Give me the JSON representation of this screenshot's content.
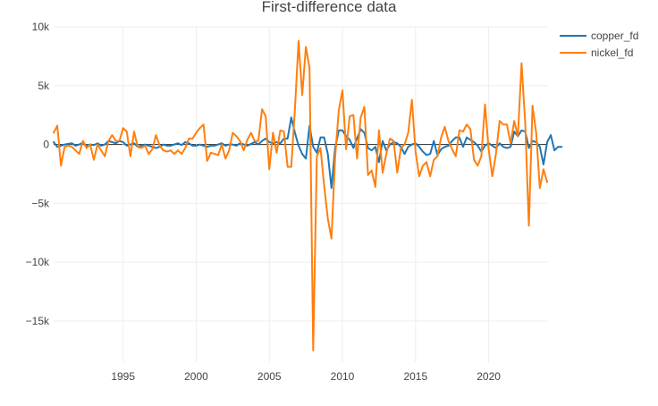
{
  "chart_data": {
    "type": "line",
    "title": "First-difference data",
    "xlabel": "",
    "ylabel": "",
    "xlim": [
      1990.25,
      2024.0
    ],
    "ylim": [
      -18500,
      10000
    ],
    "x_ticks": [
      1995,
      2000,
      2005,
      2010,
      2015,
      2020
    ],
    "y_ticks": [
      -15000,
      -10000,
      -5000,
      0,
      5000,
      10000
    ],
    "y_tick_labels": [
      "−15k",
      "−10k",
      "−5k",
      "0",
      "5k",
      "10k"
    ],
    "x_start": 1990.25,
    "x_step": 0.25,
    "series": [
      {
        "name": "copper_fd",
        "color": "#1f77b4",
        "values": [
          200,
          -200,
          -100,
          0,
          50,
          100,
          -100,
          0,
          150,
          -100,
          0,
          -50,
          100,
          -100,
          0,
          300,
          200,
          100,
          300,
          200,
          -100,
          0,
          100,
          -200,
          -100,
          0,
          -100,
          -200,
          -300,
          -200,
          0,
          -100,
          -100,
          0,
          100,
          -50,
          200,
          100,
          -100,
          -100,
          0,
          -100,
          -200,
          -100,
          -100,
          0,
          100,
          -100,
          0,
          0,
          -100,
          100,
          0,
          -100,
          50,
          200,
          0,
          300,
          500,
          200,
          100,
          200,
          100,
          500,
          500,
          2300,
          1000,
          -100,
          -800,
          -1200,
          1600,
          -200,
          -700,
          600,
          600,
          -800,
          -3700,
          -300,
          1200,
          1200,
          700,
          400,
          -300,
          500,
          1300,
          1000,
          -300,
          -500,
          -200,
          -1500,
          300,
          -500,
          0,
          200,
          100,
          -200,
          -800,
          -200,
          0,
          100,
          -200,
          -600,
          -900,
          -800,
          300,
          -900,
          -400,
          -200,
          -100,
          300,
          600,
          600,
          -200,
          600,
          400,
          200,
          -100,
          -600,
          -100,
          100,
          -100,
          -300,
          100,
          -200,
          -300,
          -200,
          1100,
          700,
          1200,
          1100,
          -300,
          300,
          200,
          -200,
          -1700,
          200,
          800,
          -500,
          -200,
          -200
        ],
        "label_color": "#444444"
      },
      {
        "name": "nickel_fd",
        "color": "#ff7f0e",
        "values": [
          1000,
          1600,
          -1800,
          -200,
          -100,
          -200,
          -500,
          -800,
          300,
          -300,
          0,
          -1300,
          0,
          -500,
          -1000,
          300,
          800,
          300,
          300,
          1400,
          1100,
          -1000,
          1100,
          -200,
          -300,
          -100,
          -800,
          -400,
          800,
          -100,
          -500,
          -600,
          -500,
          -800,
          -500,
          -800,
          -300,
          500,
          500,
          1000,
          1400,
          1700,
          -1400,
          -700,
          -800,
          -900,
          0,
          -1200,
          -500,
          1000,
          700,
          300,
          -500,
          400,
          1000,
          300,
          300,
          3000,
          2400,
          -2100,
          1000,
          -700,
          1200,
          1100,
          -1900,
          -1900,
          3000,
          8800,
          4200,
          8300,
          6500,
          -17500,
          -1000,
          -300,
          -3500,
          -6300,
          -8000,
          -1100,
          2900,
          4600,
          -400,
          2400,
          2500,
          -1200,
          2300,
          3200,
          -2600,
          -2200,
          -3600,
          1200,
          -2400,
          -800,
          500,
          300,
          -2400,
          -300,
          0,
          1000,
          3800,
          -600,
          -2700,
          -1800,
          -1500,
          -2700,
          -1300,
          -1000,
          600,
          1500,
          300,
          -400,
          -1000,
          1200,
          1100,
          1700,
          1300,
          -1300,
          -1800,
          -1000,
          3400,
          -400,
          -2700,
          -800,
          2000,
          1700,
          1700,
          100,
          2000,
          700,
          6900,
          1800,
          -6900,
          3300,
          1000,
          -3700,
          -2100,
          -3200
        ],
        "label_color": "#444444"
      }
    ]
  }
}
